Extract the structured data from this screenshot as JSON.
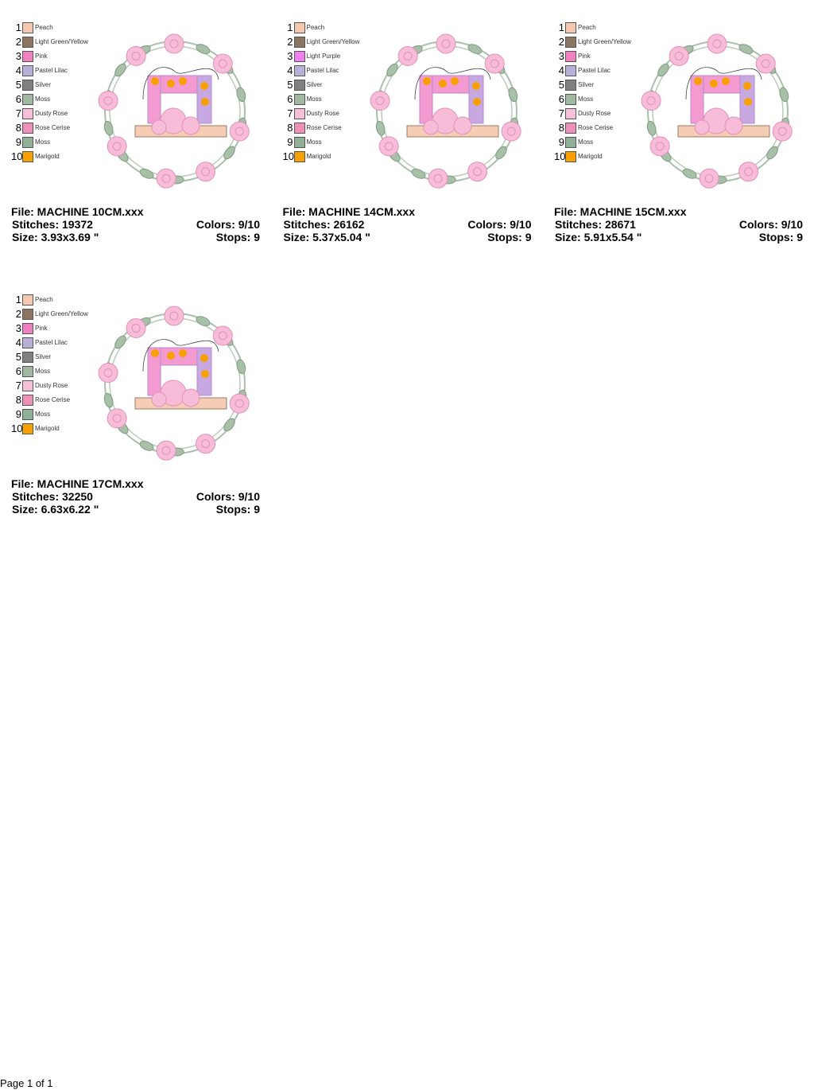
{
  "designs": [
    {
      "palette": [
        {
          "number": 1,
          "name": "Peach",
          "color": "#f6c8b0"
        },
        {
          "number": 2,
          "name": "Light Green/Yellow",
          "color": "#8b7560"
        },
        {
          "number": 3,
          "name": "Pink",
          "color": "#f080c0"
        },
        {
          "number": 4,
          "name": "Pastel Lilac",
          "color": "#b8b0d8"
        },
        {
          "number": 5,
          "name": "Silver",
          "color": "#808080"
        },
        {
          "number": 6,
          "name": "Moss",
          "color": "#a0b8a0"
        },
        {
          "number": 7,
          "name": "Dusty Rose",
          "color": "#f8c0d8"
        },
        {
          "number": 8,
          "name": "Rose Cerise",
          "color": "#f090b8"
        },
        {
          "number": 9,
          "name": "Moss",
          "color": "#90b098"
        },
        {
          "number": 10,
          "name": "Marigold",
          "color": "#f8a000"
        }
      ],
      "file": "File: MACHINE 10CM.xxx",
      "stitches": "Stitches: 19372",
      "colors": "Colors: 9/10",
      "size": "Size: 3.93x3.69 \"",
      "stops": "Stops: 9"
    },
    {
      "palette": [
        {
          "number": 1,
          "name": "Peach",
          "color": "#f6c8b0"
        },
        {
          "number": 2,
          "name": "Light Green/Yellow",
          "color": "#8b7560"
        },
        {
          "number": 3,
          "name": "Light Purple",
          "color": "#f080f0"
        },
        {
          "number": 4,
          "name": "Pastel Lilac",
          "color": "#b8b0d8"
        },
        {
          "number": 5,
          "name": "Silver",
          "color": "#808080"
        },
        {
          "number": 6,
          "name": "Moss",
          "color": "#a0b8a0"
        },
        {
          "number": 7,
          "name": "Dusty Rose",
          "color": "#f8c0d8"
        },
        {
          "number": 8,
          "name": "Rose Cerise",
          "color": "#f090b8"
        },
        {
          "number": 9,
          "name": "Moss",
          "color": "#90b098"
        },
        {
          "number": 10,
          "name": "Marigold",
          "color": "#f8a000"
        }
      ],
      "file": "File: MACHINE 14CM.xxx",
      "stitches": "Stitches: 26162",
      "colors": "Colors: 9/10",
      "size": "Size: 5.37x5.04 \"",
      "stops": "Stops: 9"
    },
    {
      "palette": [
        {
          "number": 1,
          "name": "Peach",
          "color": "#f6c8b0"
        },
        {
          "number": 2,
          "name": "Light Green/Yellow",
          "color": "#8b7560"
        },
        {
          "number": 3,
          "name": "Pink",
          "color": "#f080c0"
        },
        {
          "number": 4,
          "name": "Pastel Lilac",
          "color": "#b8b0d8"
        },
        {
          "number": 5,
          "name": "Silver",
          "color": "#808080"
        },
        {
          "number": 6,
          "name": "Moss",
          "color": "#a0b8a0"
        },
        {
          "number": 7,
          "name": "Dusty Rose",
          "color": "#f8c0d8"
        },
        {
          "number": 8,
          "name": "Rose Cerise",
          "color": "#f090b8"
        },
        {
          "number": 9,
          "name": "Moss",
          "color": "#90b098"
        },
        {
          "number": 10,
          "name": "Marigold",
          "color": "#f8a000"
        }
      ],
      "file": "File: MACHINE 15CM.xxx",
      "stitches": "Stitches: 28671",
      "colors": "Colors: 9/10",
      "size": "Size: 5.91x5.54 \"",
      "stops": "Stops: 9"
    },
    {
      "palette": [
        {
          "number": 1,
          "name": "Peach",
          "color": "#f6c8b0"
        },
        {
          "number": 2,
          "name": "Light Green/Yellow",
          "color": "#8b7560"
        },
        {
          "number": 3,
          "name": "Pink",
          "color": "#f080c0"
        },
        {
          "number": 4,
          "name": "Pastel Lilac",
          "color": "#b8b0d8"
        },
        {
          "number": 5,
          "name": "Silver",
          "color": "#808080"
        },
        {
          "number": 6,
          "name": "Moss",
          "color": "#a0b8a0"
        },
        {
          "number": 7,
          "name": "Dusty Rose",
          "color": "#f8c0d8"
        },
        {
          "number": 8,
          "name": "Rose Cerise",
          "color": "#f090b8"
        },
        {
          "number": 9,
          "name": "Moss",
          "color": "#90b098"
        },
        {
          "number": 10,
          "name": "Marigold",
          "color": "#f8a000"
        }
      ],
      "file": "File: MACHINE 17CM.xxx",
      "stitches": "Stitches: 32250",
      "colors": "Colors: 9/10",
      "size": "Size: 6.63x6.22 \"",
      "stops": "Stops: 9"
    }
  ],
  "footer": "Page 1 of 1"
}
